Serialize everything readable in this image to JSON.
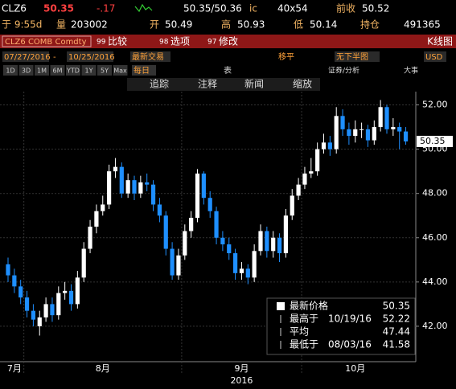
{
  "header": {
    "ticker": "CLZ6",
    "last": "50.35",
    "change": "-.17",
    "bid_ask": "50.35/50.36",
    "bid_ask_suffix": "ic",
    "size": "40x54",
    "prev_close_label": "前收",
    "prev_close": "50.52",
    "time": "于 9:55d",
    "volume_label": "量",
    "volume": "203002",
    "open_label": "开",
    "open": "50.49",
    "high_label": "高",
    "high": "50.93",
    "low_label": "低",
    "low": "50.14",
    "oi_label": "持仓",
    "oi": "491365"
  },
  "menu": {
    "security": "CLZ6 COMB Comdty",
    "items": [
      {
        "num": "99",
        "label": "比较"
      },
      {
        "num": "98",
        "label": "选项"
      },
      {
        "num": "97",
        "label": "修改"
      }
    ],
    "chart_kind": "K线图"
  },
  "settings": {
    "start_date": "07/27/2016",
    "end_date": "10/25/2016",
    "price_type": "最新交易",
    "smoothing": "移平",
    "lower_chart": "无下半图",
    "currency": "USD"
  },
  "periods": [
    "1D",
    "3D",
    "1M",
    "6M",
    "YTD",
    "1Y",
    "5Y",
    "Max"
  ],
  "tools": {
    "frequency": "每日",
    "table": "表",
    "analysis": "证券/分析",
    "events": "大事",
    "actions": [
      "追踪",
      "注释",
      "新闻",
      "缩放"
    ]
  },
  "chart_data": {
    "type": "candlestick",
    "categories": [
      "7月",
      null,
      null,
      "8月",
      null,
      null,
      null,
      null,
      null,
      null,
      null,
      null,
      null,
      null,
      null,
      null,
      null,
      null,
      null,
      null,
      null,
      null,
      null,
      null,
      null,
      null,
      null,
      null,
      "9月",
      null,
      null,
      null,
      null,
      null,
      null,
      null,
      null,
      null,
      null,
      null,
      null,
      null,
      null,
      null,
      null,
      null,
      null,
      "10月",
      null,
      null,
      null,
      null,
      null,
      null,
      null,
      null,
      null,
      null,
      null,
      null,
      null,
      null,
      null,
      null
    ],
    "year_label": "2016",
    "open": [
      44.8,
      44.3,
      43.8,
      43.3,
      42.7,
      42.0,
      42.4,
      43.0,
      42.5,
      43.5,
      43.6,
      43.0,
      44.2,
      45.5,
      46.5,
      47.2,
      47.5,
      49.0,
      49.2,
      48.0,
      48.6,
      48.0,
      48.5,
      48.4,
      47.5,
      47.0,
      45.5,
      44.3,
      45.2,
      46.3,
      46.9,
      48.9,
      47.8,
      47.2,
      46.0,
      45.7,
      45.3,
      44.4,
      44.6,
      44.2,
      45.4,
      46.3,
      45.4,
      46.0,
      45.3,
      47.0,
      47.9,
      48.4,
      48.9,
      49.0,
      50.0,
      50.3,
      50.0,
      51.5,
      50.9,
      50.6,
      50.9,
      50.9,
      50.4,
      51.0,
      51.9,
      50.9,
      51.0,
      50.8
    ],
    "high": [
      45.1,
      44.6,
      44.1,
      43.6,
      43.0,
      42.7,
      43.3,
      43.3,
      43.8,
      44.0,
      43.9,
      44.5,
      45.8,
      46.8,
      47.5,
      47.9,
      49.3,
      49.6,
      49.4,
      48.9,
      48.8,
      48.8,
      48.9,
      48.6,
      47.8,
      47.2,
      45.8,
      45.5,
      46.6,
      47.2,
      49.1,
      49.0,
      48.1,
      47.4,
      46.3,
      46.0,
      45.5,
      44.9,
      44.8,
      45.7,
      46.6,
      46.5,
      46.3,
      46.2,
      47.3,
      48.2,
      48.7,
      49.2,
      49.6,
      50.3,
      50.7,
      50.6,
      51.9,
      51.8,
      51.2,
      51.3,
      51.2,
      51.1,
      51.3,
      52.22,
      52.0,
      51.4,
      51.2,
      51.0
    ],
    "low": [
      44.0,
      43.5,
      43.0,
      42.4,
      42.0,
      41.58,
      42.2,
      42.2,
      42.3,
      43.2,
      42.7,
      42.8,
      44.0,
      45.3,
      46.2,
      47.0,
      47.3,
      48.7,
      47.8,
      47.8,
      47.7,
      47.8,
      48.1,
      47.2,
      46.7,
      45.2,
      44.1,
      44.1,
      45.0,
      46.0,
      46.7,
      47.5,
      46.9,
      45.7,
      45.4,
      45.0,
      44.1,
      44.1,
      43.9,
      44.0,
      45.2,
      45.1,
      45.1,
      44.9,
      45.1,
      46.8,
      47.7,
      48.2,
      48.7,
      48.8,
      49.8,
      49.7,
      49.8,
      50.6,
      50.2,
      50.3,
      50.5,
      50.1,
      50.2,
      50.8,
      50.7,
      50.6,
      50.0,
      50.2
    ],
    "close": [
      44.3,
      43.8,
      43.3,
      42.7,
      42.3,
      42.4,
      43.0,
      42.5,
      43.5,
      43.6,
      43.0,
      44.2,
      45.5,
      46.5,
      47.2,
      47.5,
      49.0,
      49.2,
      48.0,
      48.6,
      48.0,
      48.5,
      48.4,
      47.5,
      47.0,
      45.5,
      44.3,
      45.2,
      46.3,
      46.9,
      48.9,
      47.8,
      47.2,
      46.0,
      45.7,
      45.3,
      44.4,
      44.6,
      44.2,
      45.4,
      46.3,
      45.4,
      46.0,
      45.3,
      47.0,
      47.9,
      48.4,
      48.9,
      49.0,
      50.0,
      50.3,
      50.0,
      51.5,
      50.9,
      50.6,
      50.9,
      50.9,
      50.4,
      51.0,
      51.9,
      50.9,
      51.0,
      50.8,
      50.35
    ],
    "up_color": "#ffffff",
    "down_color": "#1e8fff",
    "ylim": [
      40.4,
      52.6
    ],
    "yticks": [
      {
        "value": 42,
        "label": "42.00"
      },
      {
        "value": 44,
        "label": "44.00"
      },
      {
        "value": 46,
        "label": "46.00"
      },
      {
        "value": 48,
        "label": "48.00"
      },
      {
        "value": 50,
        "label": "50.00"
      },
      {
        "value": 52,
        "label": "52.00"
      }
    ],
    "grid": true,
    "last_price": 50.35,
    "legend": [
      {
        "label": "最新价格",
        "value": 50.35
      },
      {
        "label": "最高于",
        "date": "10/19/16",
        "value": 52.22
      },
      {
        "label": "平均",
        "value": 47.44
      },
      {
        "label": "最低于",
        "date": "08/03/16",
        "value": 41.58
      }
    ]
  }
}
